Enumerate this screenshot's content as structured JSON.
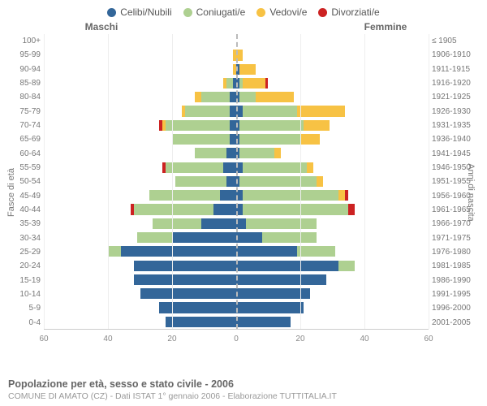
{
  "legend": {
    "items": [
      {
        "label": "Celibi/Nubili",
        "color": "#336699"
      },
      {
        "label": "Coniugati/e",
        "color": "#aed091"
      },
      {
        "label": "Vedovi/e",
        "color": "#f7c244"
      },
      {
        "label": "Divorziati/e",
        "color": "#cc2222"
      }
    ]
  },
  "sides": {
    "left": "Maschi",
    "right": "Femmine"
  },
  "axis_titles": {
    "left": "Fasce di età",
    "right": "Anni di nascita"
  },
  "chart": {
    "type": "population-pyramid",
    "background": "#ffffff",
    "grid_color": "#eeeeee",
    "zero_color": "#bbbbbb",
    "max": 60,
    "xticks": [
      60,
      40,
      20,
      0,
      20,
      40,
      60
    ],
    "yleft": [
      "100+",
      "95-99",
      "90-94",
      "85-89",
      "80-84",
      "75-79",
      "70-74",
      "65-69",
      "60-64",
      "55-59",
      "50-54",
      "45-49",
      "40-44",
      "35-39",
      "30-34",
      "25-29",
      "20-24",
      "15-19",
      "10-14",
      "5-9",
      "0-4"
    ],
    "yright": [
      "≤ 1905",
      "1906-1910",
      "1911-1915",
      "1916-1920",
      "1921-1925",
      "1926-1930",
      "1931-1935",
      "1936-1940",
      "1941-1945",
      "1946-1950",
      "1951-1955",
      "1956-1960",
      "1961-1965",
      "1966-1970",
      "1971-1975",
      "1976-1980",
      "1981-1985",
      "1986-1990",
      "1991-1995",
      "1996-2000",
      "2001-2005"
    ],
    "series_colors": {
      "single": "#336699",
      "married": "#aed091",
      "widowed": "#f7c244",
      "divorced": "#cc2222"
    },
    "rows": [
      {
        "m": {
          "single": 0,
          "married": 0,
          "widowed": 0,
          "divorced": 0
        },
        "f": {
          "single": 0,
          "married": 0,
          "widowed": 0,
          "divorced": 0
        }
      },
      {
        "m": {
          "single": 0,
          "married": 0,
          "widowed": 1,
          "divorced": 0
        },
        "f": {
          "single": 0,
          "married": 0,
          "widowed": 2,
          "divorced": 0
        }
      },
      {
        "m": {
          "single": 0,
          "married": 0,
          "widowed": 1,
          "divorced": 0
        },
        "f": {
          "single": 1,
          "married": 0,
          "widowed": 5,
          "divorced": 0
        }
      },
      {
        "m": {
          "single": 1,
          "married": 2,
          "widowed": 1,
          "divorced": 0
        },
        "f": {
          "single": 1,
          "married": 1,
          "widowed": 7,
          "divorced": 1
        }
      },
      {
        "m": {
          "single": 2,
          "married": 9,
          "widowed": 2,
          "divorced": 0
        },
        "f": {
          "single": 1,
          "married": 5,
          "widowed": 12,
          "divorced": 0
        }
      },
      {
        "m": {
          "single": 2,
          "married": 14,
          "widowed": 1,
          "divorced": 0
        },
        "f": {
          "single": 2,
          "married": 17,
          "widowed": 15,
          "divorced": 0
        }
      },
      {
        "m": {
          "single": 2,
          "married": 20,
          "widowed": 1,
          "divorced": 1
        },
        "f": {
          "single": 1,
          "married": 20,
          "widowed": 8,
          "divorced": 0
        }
      },
      {
        "m": {
          "single": 2,
          "married": 18,
          "widowed": 0,
          "divorced": 0
        },
        "f": {
          "single": 1,
          "married": 19,
          "widowed": 6,
          "divorced": 0
        }
      },
      {
        "m": {
          "single": 3,
          "married": 10,
          "widowed": 0,
          "divorced": 0
        },
        "f": {
          "single": 1,
          "married": 11,
          "widowed": 2,
          "divorced": 0
        }
      },
      {
        "m": {
          "single": 4,
          "married": 18,
          "widowed": 0,
          "divorced": 1
        },
        "f": {
          "single": 2,
          "married": 20,
          "widowed": 2,
          "divorced": 0
        }
      },
      {
        "m": {
          "single": 3,
          "married": 16,
          "widowed": 0,
          "divorced": 0
        },
        "f": {
          "single": 1,
          "married": 24,
          "widowed": 2,
          "divorced": 0
        }
      },
      {
        "m": {
          "single": 5,
          "married": 22,
          "widowed": 0,
          "divorced": 0
        },
        "f": {
          "single": 2,
          "married": 30,
          "widowed": 2,
          "divorced": 1
        }
      },
      {
        "m": {
          "single": 7,
          "married": 25,
          "widowed": 0,
          "divorced": 1
        },
        "f": {
          "single": 2,
          "married": 33,
          "widowed": 0,
          "divorced": 2
        }
      },
      {
        "m": {
          "single": 11,
          "married": 15,
          "widowed": 0,
          "divorced": 0
        },
        "f": {
          "single": 3,
          "married": 22,
          "widowed": 0,
          "divorced": 0
        }
      },
      {
        "m": {
          "single": 20,
          "married": 11,
          "widowed": 0,
          "divorced": 0
        },
        "f": {
          "single": 8,
          "married": 17,
          "widowed": 0,
          "divorced": 0
        }
      },
      {
        "m": {
          "single": 36,
          "married": 4,
          "widowed": 0,
          "divorced": 0
        },
        "f": {
          "single": 19,
          "married": 12,
          "widowed": 0,
          "divorced": 0
        }
      },
      {
        "m": {
          "single": 32,
          "married": 0,
          "widowed": 0,
          "divorced": 0
        },
        "f": {
          "single": 32,
          "married": 5,
          "widowed": 0,
          "divorced": 0
        }
      },
      {
        "m": {
          "single": 32,
          "married": 0,
          "widowed": 0,
          "divorced": 0
        },
        "f": {
          "single": 28,
          "married": 0,
          "widowed": 0,
          "divorced": 0
        }
      },
      {
        "m": {
          "single": 30,
          "married": 0,
          "widowed": 0,
          "divorced": 0
        },
        "f": {
          "single": 23,
          "married": 0,
          "widowed": 0,
          "divorced": 0
        }
      },
      {
        "m": {
          "single": 24,
          "married": 0,
          "widowed": 0,
          "divorced": 0
        },
        "f": {
          "single": 21,
          "married": 0,
          "widowed": 0,
          "divorced": 0
        }
      },
      {
        "m": {
          "single": 22,
          "married": 0,
          "widowed": 0,
          "divorced": 0
        },
        "f": {
          "single": 17,
          "married": 0,
          "widowed": 0,
          "divorced": 0
        }
      }
    ]
  },
  "footer": {
    "line1": "Popolazione per età, sesso e stato civile - 2006",
    "line2": "COMUNE DI AMATO (CZ) - Dati ISTAT 1° gennaio 2006 - Elaborazione TUTTITALIA.IT"
  }
}
